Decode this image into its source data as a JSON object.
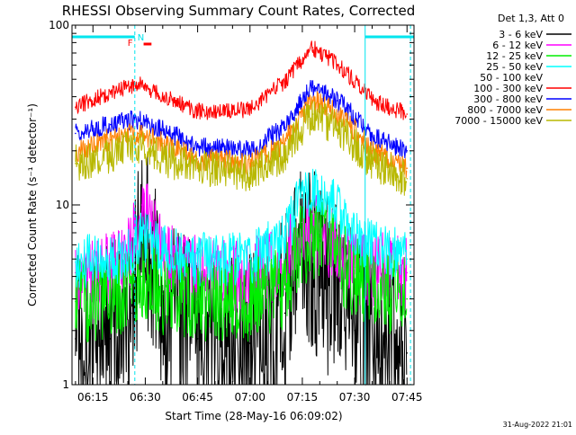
{
  "chart_data": {
    "type": "line",
    "title": "RHESSI Observing Summary Count Rates, Corrected",
    "xlabel": "Start Time (28-May-16 06:09:02)",
    "ylabel": "Corrected Count Rate (s⁻¹ detector⁻¹)",
    "y_scale": "log",
    "ylim": [
      1,
      100
    ],
    "xlim": [
      "06:09",
      "07:47"
    ],
    "x_ticks": [
      "06:15",
      "06:30",
      "06:45",
      "07:00",
      "07:15",
      "07:30",
      "07:45"
    ],
    "y_ticks": [
      "1",
      "10",
      "100"
    ],
    "legend_title": "Det 1,3, Att 0",
    "legend_placement": "right",
    "timestamp": "31-Aug-2022 21:01",
    "flags": {
      "labels": [
        "N",
        "F"
      ],
      "night": {
        "label": "N",
        "intervals": [
          [
            "06:09",
            "06:27"
          ],
          [
            "07:33",
            "07:47"
          ]
        ],
        "color": "#00e5ee"
      },
      "flare": {
        "label": "F",
        "interval": [
          "06:29",
          "06:31"
        ],
        "color": "#ff0000"
      },
      "boundaries": [
        "06:27",
        "07:33",
        "07:46"
      ]
    },
    "series": [
      {
        "name": "3 - 6 keV",
        "color": "#000000",
        "x": [
          "06:10",
          "06:20",
          "06:26",
          "06:29",
          "06:35",
          "06:45",
          "07:00",
          "07:10",
          "07:15",
          "07:20",
          "07:30",
          "07:45"
        ],
        "y": [
          1.8,
          1.8,
          2.5,
          7.0,
          2.5,
          1.8,
          1.7,
          2.5,
          6.0,
          4.0,
          2.0,
          1.5
        ]
      },
      {
        "name": "6 - 12 keV",
        "color": "#ff00ff",
        "x": [
          "06:10",
          "06:20",
          "06:26",
          "06:29",
          "06:35",
          "06:45",
          "07:00",
          "07:10",
          "07:15",
          "07:20",
          "07:30",
          "07:45"
        ],
        "y": [
          4.2,
          4.3,
          5.5,
          10.0,
          5.0,
          4.2,
          4.0,
          5.0,
          8.0,
          7.0,
          4.5,
          4.2
        ]
      },
      {
        "name": "12 - 25 keV",
        "color": "#00ee00",
        "x": [
          "06:10",
          "06:20",
          "06:26",
          "06:29",
          "06:35",
          "06:45",
          "07:00",
          "07:10",
          "07:15",
          "07:20",
          "07:30",
          "07:45"
        ],
        "y": [
          2.9,
          3.0,
          3.4,
          4.0,
          3.2,
          3.0,
          3.0,
          3.4,
          6.0,
          6.5,
          3.8,
          3.0
        ]
      },
      {
        "name": "25 - 50 keV",
        "color": "#00ffff",
        "x": [
          "06:10",
          "06:20",
          "06:26",
          "06:29",
          "06:35",
          "06:45",
          "07:00",
          "07:10",
          "07:15",
          "07:20",
          "07:30",
          "07:45"
        ],
        "y": [
          4.8,
          5.0,
          5.5,
          7.0,
          5.5,
          5.0,
          5.0,
          6.5,
          11.0,
          12.0,
          6.5,
          5.0
        ]
      },
      {
        "name": "50 - 100 keV",
        "color": "#ffffff",
        "x": [
          "06:10",
          "07:45"
        ],
        "y": [
          1.0,
          1.0
        ]
      },
      {
        "name": "100 - 300 keV",
        "color": "#ff0000",
        "x": [
          "06:10",
          "06:20",
          "06:28",
          "06:35",
          "06:45",
          "07:00",
          "07:10",
          "07:18",
          "07:25",
          "07:35",
          "07:45"
        ],
        "y": [
          35,
          42,
          47,
          40,
          33,
          34,
          48,
          75,
          60,
          38,
          32
        ]
      },
      {
        "name": "300 - 800 keV",
        "color": "#0000ff",
        "x": [
          "06:10",
          "06:20",
          "06:28",
          "06:35",
          "06:45",
          "07:00",
          "07:10",
          "07:18",
          "07:25",
          "07:35",
          "07:45"
        ],
        "y": [
          25,
          28,
          30,
          26,
          21,
          20,
          27,
          45,
          38,
          24,
          20
        ]
      },
      {
        "name": "800 - 7000 keV",
        "color": "#ff8000",
        "x": [
          "06:10",
          "06:20",
          "06:28",
          "06:35",
          "06:45",
          "07:00",
          "07:10",
          "07:18",
          "07:25",
          "07:35",
          "07:45"
        ],
        "y": [
          20,
          23,
          25,
          22,
          18,
          17,
          22,
          38,
          32,
          20,
          16
        ]
      },
      {
        "name": "7000 - 15000 keV",
        "color": "#b8b800",
        "x": [
          "06:10",
          "06:20",
          "06:28",
          "06:35",
          "06:45",
          "07:00",
          "07:10",
          "07:18",
          "07:25",
          "07:35",
          "07:45"
        ],
        "y": [
          17,
          19,
          21,
          18,
          16,
          15,
          19,
          32,
          26,
          17,
          14
        ]
      }
    ]
  }
}
